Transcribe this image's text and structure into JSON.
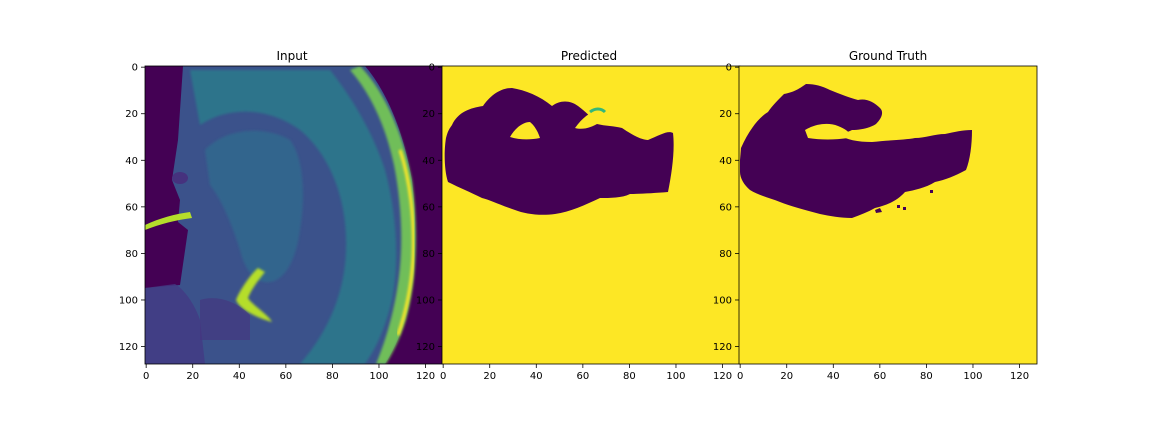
{
  "figure": {
    "panels": [
      {
        "title": "Input",
        "x_ticks": [
          "0",
          "20",
          "40",
          "60",
          "80",
          "100",
          "120"
        ],
        "y_ticks": [
          "0",
          "20",
          "40",
          "60",
          "80",
          "100",
          "120"
        ]
      },
      {
        "title": "Predicted",
        "x_ticks": [
          "0",
          "20",
          "40",
          "60",
          "80",
          "100",
          "120"
        ],
        "y_ticks": [
          "0",
          "20",
          "40",
          "60",
          "80",
          "100",
          "120"
        ]
      },
      {
        "title": "Ground Truth",
        "x_ticks": [
          "0",
          "20",
          "40",
          "60",
          "80",
          "100",
          "120"
        ],
        "y_ticks": [
          "0",
          "20",
          "40",
          "60",
          "80",
          "100",
          "120"
        ]
      }
    ],
    "colors": {
      "background_dark": "#440154",
      "tissue_mid": "#31688e",
      "tissue_teal": "#26828e",
      "bright_edge": "#b5de2b",
      "mask_yellow": "#fde725"
    }
  }
}
